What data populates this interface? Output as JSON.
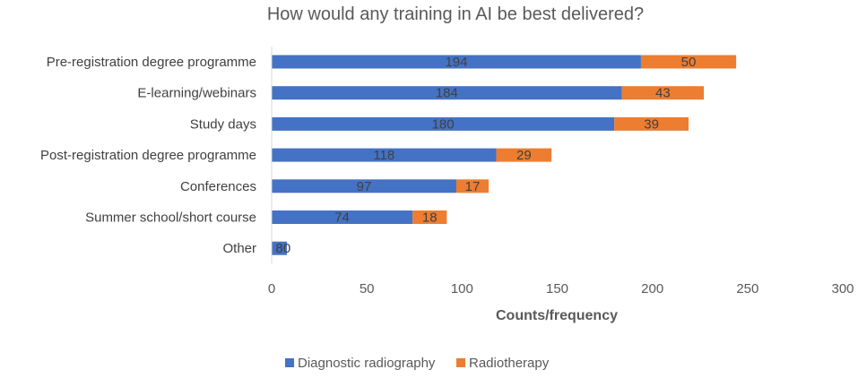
{
  "chart_data": {
    "type": "bar",
    "orientation": "horizontal",
    "stacked": true,
    "title": "How would any training in AI be best delivered?",
    "xlabel": "Counts/frequency",
    "ylabel": "",
    "xlim": [
      0,
      300
    ],
    "xticks": [
      "0",
      "50",
      "100",
      "150",
      "200",
      "250",
      "300"
    ],
    "grid": false,
    "legend_position": "bottom",
    "categories": [
      "Pre-registration degree programme",
      "E-learning/webinars",
      "Study days",
      "Post-registration degree programme",
      "Conferences",
      "Summer school/short course",
      "Other"
    ],
    "series": [
      {
        "name": "Diagnostic radiography",
        "color": "#4472C4",
        "values": [
          194,
          184,
          180,
          118,
          97,
          74,
          8
        ]
      },
      {
        "name": "Radiotherapy",
        "color": "#ED7D31",
        "values": [
          50,
          43,
          39,
          29,
          17,
          18,
          0
        ]
      }
    ]
  }
}
